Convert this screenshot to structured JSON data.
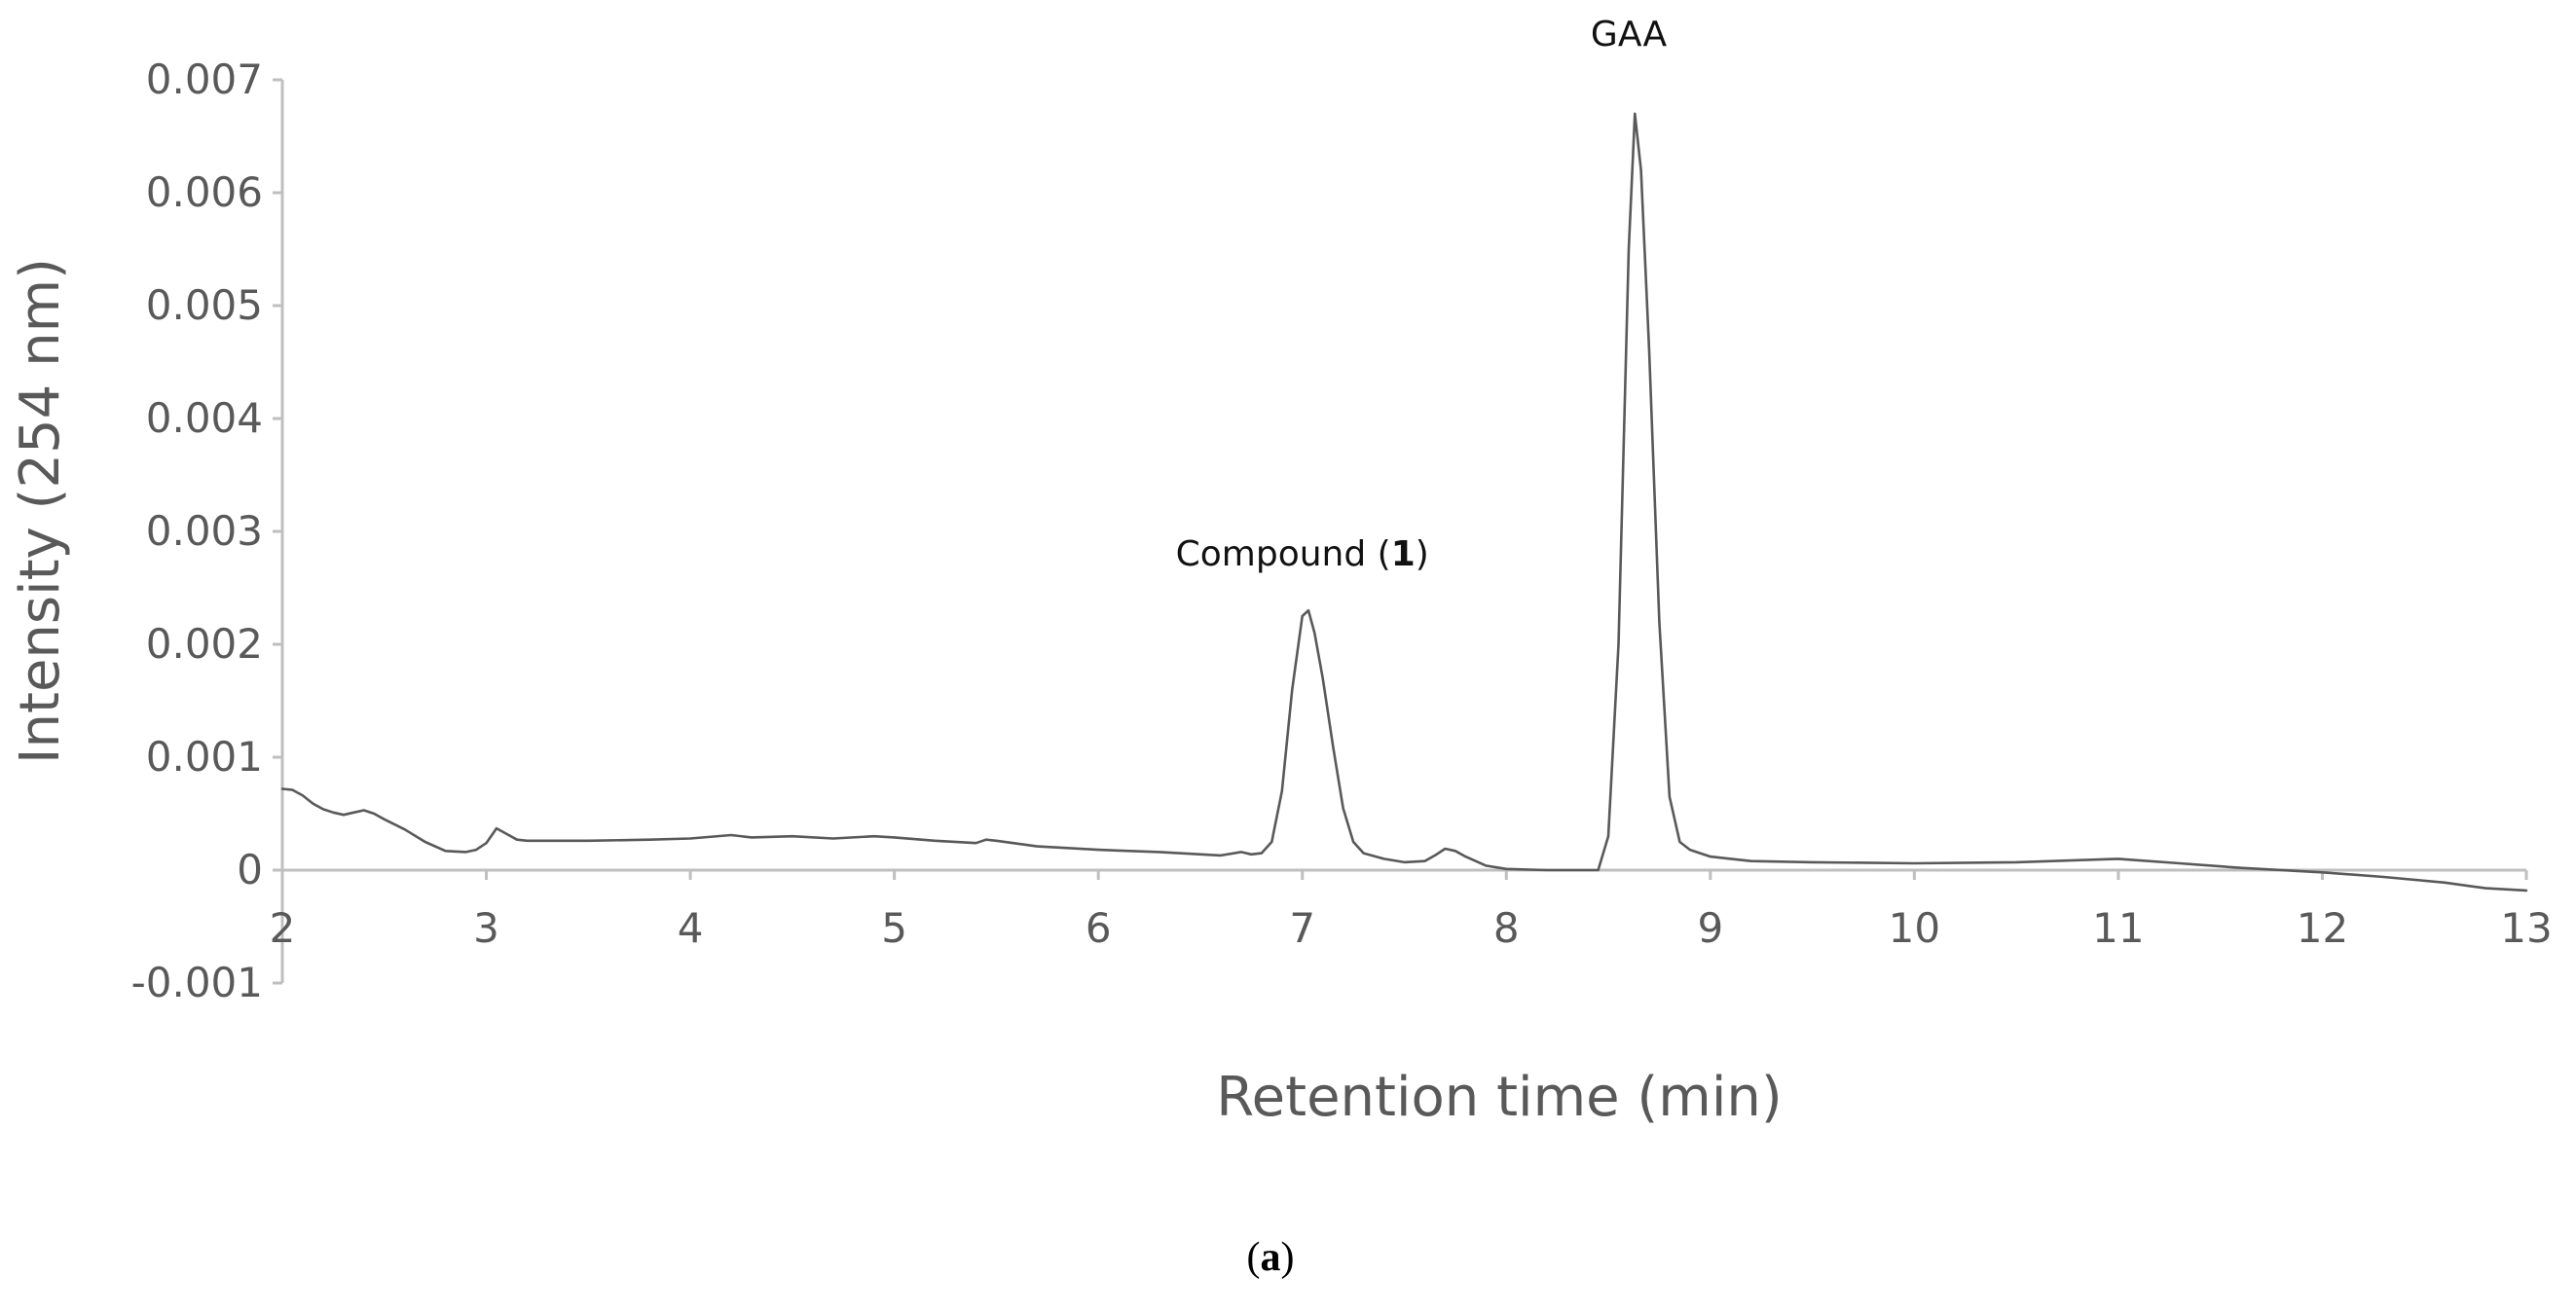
{
  "chart_data": {
    "type": "line",
    "xlabel": "Retention time (min)",
    "ylabel": "Intensity (254 nm)",
    "xlim": [
      2,
      13
    ],
    "ylim": [
      -0.001,
      0.007
    ],
    "x_ticks": [
      2,
      3,
      4,
      5,
      6,
      7,
      8,
      9,
      10,
      11,
      12,
      13
    ],
    "y_ticks": [
      -0.001,
      0,
      0.001,
      0.002,
      0.003,
      0.004,
      0.005,
      0.006,
      0.007
    ],
    "y_tick_labels": [
      "-0.001",
      "0",
      "0.001",
      "0.002",
      "0.003",
      "0.004",
      "0.005",
      "0.006",
      "0.007"
    ],
    "grid": false,
    "line_color": "#595959",
    "annotations": [
      {
        "text_before": "Compound (",
        "text_bold": "1",
        "text_after": ")",
        "x": 7.0,
        "y": 0.0027
      },
      {
        "text": "GAA",
        "x": 8.6,
        "y": 0.0073
      }
    ],
    "series": [
      {
        "points": [
          [
            2.0,
            0.00072
          ],
          [
            2.05,
            0.00071
          ],
          [
            2.1,
            0.00066
          ],
          [
            2.15,
            0.00059
          ],
          [
            2.2,
            0.00054
          ],
          [
            2.25,
            0.00051
          ],
          [
            2.3,
            0.00049
          ],
          [
            2.35,
            0.00051
          ],
          [
            2.4,
            0.00053
          ],
          [
            2.45,
            0.0005
          ],
          [
            2.5,
            0.00045
          ],
          [
            2.6,
            0.00036
          ],
          [
            2.7,
            0.00025
          ],
          [
            2.8,
            0.00017
          ],
          [
            2.9,
            0.00016
          ],
          [
            2.95,
            0.00018
          ],
          [
            3.0,
            0.00024
          ],
          [
            3.05,
            0.00037
          ],
          [
            3.1,
            0.00032
          ],
          [
            3.15,
            0.00027
          ],
          [
            3.2,
            0.00026
          ],
          [
            3.3,
            0.00026
          ],
          [
            3.5,
            0.00026
          ],
          [
            3.8,
            0.00027
          ],
          [
            4.0,
            0.00028
          ],
          [
            4.2,
            0.00031
          ],
          [
            4.3,
            0.00029
          ],
          [
            4.5,
            0.0003
          ],
          [
            4.7,
            0.00028
          ],
          [
            4.9,
            0.0003
          ],
          [
            5.0,
            0.00029
          ],
          [
            5.2,
            0.00026
          ],
          [
            5.4,
            0.00024
          ],
          [
            5.45,
            0.00027
          ],
          [
            5.5,
            0.00026
          ],
          [
            5.7,
            0.00021
          ],
          [
            6.0,
            0.00018
          ],
          [
            6.3,
            0.00016
          ],
          [
            6.6,
            0.00013
          ],
          [
            6.7,
            0.00016
          ],
          [
            6.75,
            0.00014
          ],
          [
            6.8,
            0.00015
          ],
          [
            6.85,
            0.00025
          ],
          [
            6.9,
            0.0007
          ],
          [
            6.95,
            0.0016
          ],
          [
            7.0,
            0.00225
          ],
          [
            7.03,
            0.0023
          ],
          [
            7.06,
            0.0021
          ],
          [
            7.1,
            0.0017
          ],
          [
            7.15,
            0.0011
          ],
          [
            7.2,
            0.00055
          ],
          [
            7.25,
            0.00025
          ],
          [
            7.3,
            0.00015
          ],
          [
            7.4,
            0.0001
          ],
          [
            7.5,
            7e-05
          ],
          [
            7.6,
            8e-05
          ],
          [
            7.65,
            0.00013
          ],
          [
            7.7,
            0.00019
          ],
          [
            7.75,
            0.00017
          ],
          [
            7.8,
            0.00012
          ],
          [
            7.9,
            4e-05
          ],
          [
            8.0,
            1e-05
          ],
          [
            8.2,
            0.0
          ],
          [
            8.4,
            0.0
          ],
          [
            8.45,
            0.0
          ],
          [
            8.5,
            0.0003
          ],
          [
            8.55,
            0.002
          ],
          [
            8.6,
            0.0055
          ],
          [
            8.63,
            0.0067
          ],
          [
            8.66,
            0.0062
          ],
          [
            8.7,
            0.0046
          ],
          [
            8.75,
            0.0022
          ],
          [
            8.8,
            0.00065
          ],
          [
            8.85,
            0.00025
          ],
          [
            8.9,
            0.00018
          ],
          [
            9.0,
            0.00012
          ],
          [
            9.2,
            8e-05
          ],
          [
            9.5,
            7e-05
          ],
          [
            10.0,
            6e-05
          ],
          [
            10.5,
            7e-05
          ],
          [
            11.0,
            0.0001
          ],
          [
            11.3,
            6e-05
          ],
          [
            11.6,
            2e-05
          ],
          [
            12.0,
            -2e-05
          ],
          [
            12.3,
            -6e-05
          ],
          [
            12.6,
            -0.00011
          ],
          [
            12.8,
            -0.00016
          ],
          [
            13.0,
            -0.00018
          ]
        ]
      }
    ]
  },
  "caption": {
    "open": "(",
    "label": "a",
    "close": ")"
  }
}
